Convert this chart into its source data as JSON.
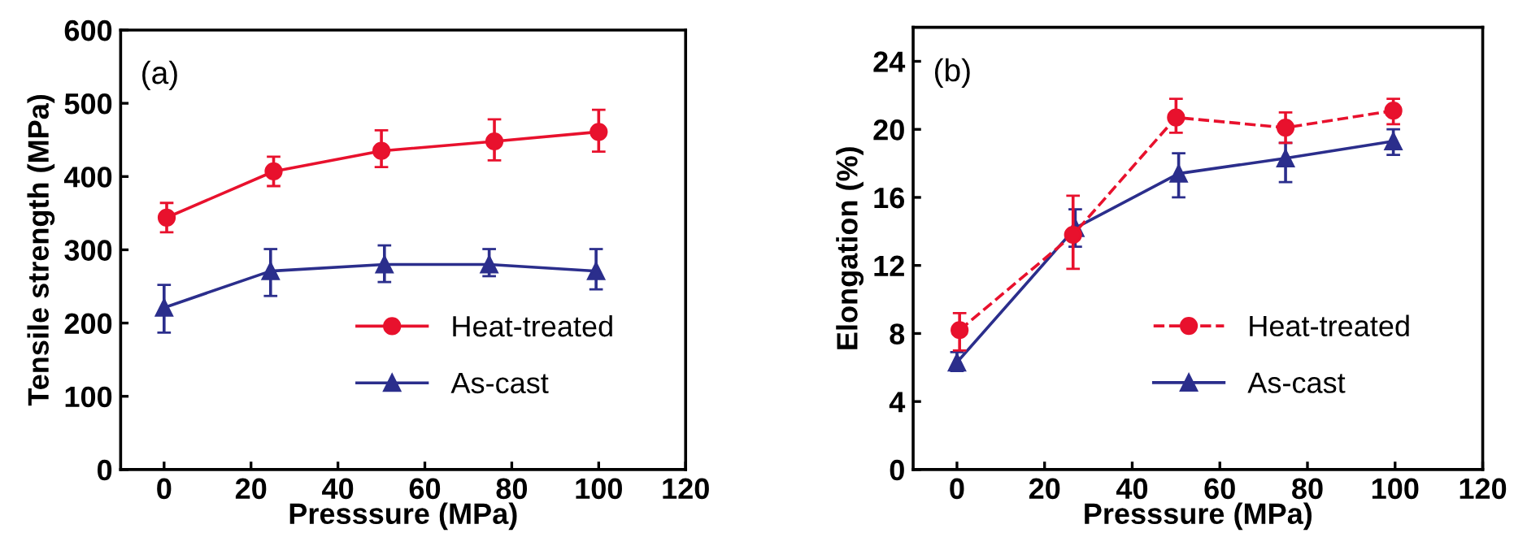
{
  "chart_data": [
    {
      "type": "line",
      "xlabel": "Presssure (MPa)",
      "ylabel": "Tensile strength (MPa)",
      "annotations": [
        "(a)"
      ],
      "xlim": [
        -10,
        120
      ],
      "xticks": [
        0,
        20,
        40,
        60,
        80,
        100,
        120
      ],
      "ylim": [
        0,
        600
      ],
      "yticks": [
        0,
        100,
        200,
        300,
        400,
        500,
        600
      ],
      "grid": false,
      "legend": "bottom right",
      "series": [
        {
          "name": "Heat-treated",
          "color": "#e8112d",
          "marker": "circle",
          "line_style": "solid",
          "x": [
            0.6,
            25.2,
            50,
            76,
            100
          ],
          "values": [
            344,
            407,
            435,
            448,
            461
          ],
          "errors": [
            [
              324,
              364
            ],
            [
              387,
              427
            ],
            [
              413,
              463
            ],
            [
              422,
              478
            ],
            [
              434,
              491
            ]
          ]
        },
        {
          "name": "As-cast",
          "color": "#2b2e8c",
          "marker": "triangle",
          "line_style": "solid",
          "x": [
            0,
            24.5,
            50.7,
            74.8,
            99.4
          ],
          "values": [
            221,
            271,
            280,
            280,
            271
          ],
          "errors": [
            [
              187,
              252
            ],
            [
              237,
              301
            ],
            [
              256,
              306
            ],
            [
              264,
              301
            ],
            [
              246,
              301
            ]
          ]
        }
      ]
    },
    {
      "type": "line",
      "xlabel": "Presssure (MPa)",
      "ylabel": "Elongation (%)",
      "annotations": [
        "(b)"
      ],
      "xlim": [
        -10,
        120
      ],
      "xticks": [
        0,
        20,
        40,
        60,
        80,
        100,
        120
      ],
      "ylim": [
        0,
        26
      ],
      "yticks": [
        0,
        4,
        8,
        12,
        16,
        20,
        24
      ],
      "grid": false,
      "legend": "bottom right",
      "series": [
        {
          "name": "Heat-treated",
          "color": "#e8112d",
          "marker": "circle",
          "line_style": "dashed",
          "x": [
            0.6,
            26.5,
            50,
            75,
            99.6
          ],
          "values": [
            8.2,
            13.8,
            20.7,
            20.1,
            21.1
          ],
          "errors": [
            [
              7.0,
              9.2
            ],
            [
              11.8,
              16.1
            ],
            [
              19.8,
              21.8
            ],
            [
              19.2,
              21.0
            ],
            [
              20.3,
              21.8
            ]
          ]
        },
        {
          "name": "As-cast",
          "color": "#2b2e8c",
          "marker": "triangle",
          "line_style": "solid",
          "x": [
            0,
            27,
            50.6,
            75,
            99.6
          ],
          "values": [
            6.3,
            14.2,
            17.4,
            18.3,
            19.3
          ],
          "errors": [
            [
              5.8,
              6.9
            ],
            [
              13.1,
              15.3
            ],
            [
              16.0,
              18.6
            ],
            [
              16.9,
              19.2
            ],
            [
              18.5,
              20.0
            ]
          ]
        }
      ]
    }
  ]
}
